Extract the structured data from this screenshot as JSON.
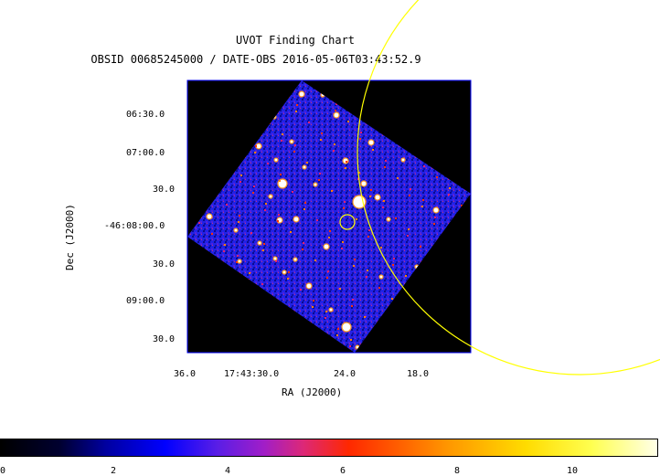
{
  "title": "UVOT Finding Chart",
  "subtitle": "OBSID 00685245000 / DATE-OBS 2016-05-06T03:43:52.9",
  "axes": {
    "ylabel": "Dec (J2000)",
    "xlabel": "RA (J2000)",
    "yticks": [
      "06:30.0",
      "07:00.0",
      "30.0",
      "-46:08:00.0",
      "30.0",
      "09:00.0",
      "30.0"
    ],
    "xticks": [
      "36.0",
      "17:43:30.0",
      "24.0",
      "18.0"
    ]
  },
  "colorbar": {
    "ticks": [
      "0",
      "2",
      "4",
      "6",
      "8",
      "10"
    ],
    "range": [
      0,
      11.5
    ],
    "colormap": "heat (black-blue-red-yellow-white)"
  },
  "colors": {
    "background": "#000000",
    "image_blue": "#1a1adc",
    "circles": "#ffff00",
    "frame": "#0000ff"
  }
}
